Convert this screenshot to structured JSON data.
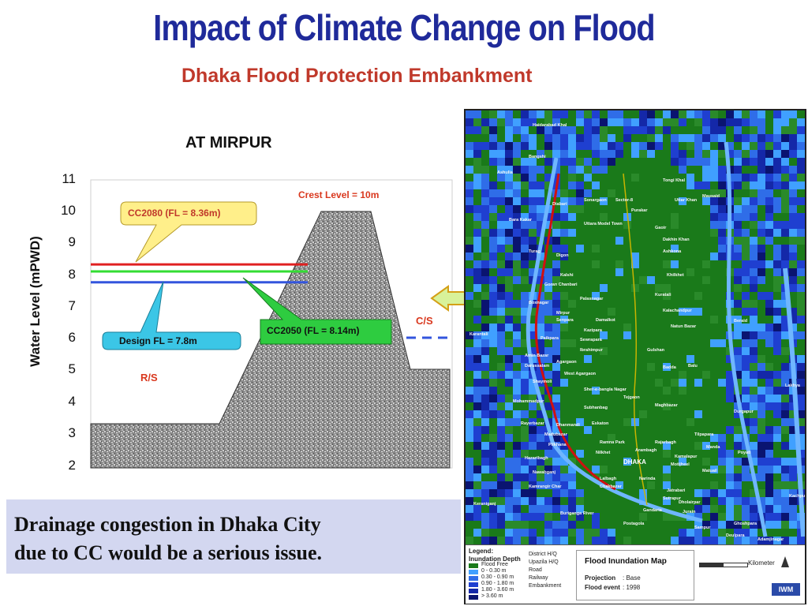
{
  "slide": {
    "title": "Impact of Climate Change on Flood",
    "subtitle": "Dhaka Flood Protection Embankment"
  },
  "cross_section": {
    "title": "AT MIRPUR",
    "ylabel": "Water Level (mPWD)",
    "y_ticks": [
      "11",
      "10",
      "9",
      "8",
      "7",
      "6",
      "5",
      "4",
      "3",
      "2"
    ],
    "ylim": [
      2,
      11
    ],
    "crest_label": "Crest Level = 10m",
    "crest_level": 10,
    "cc2080_label": "CC2080 (FL = 8.36m)",
    "cc2080_level": 8.36,
    "cc2050_label": "CC2050 (FL = 8.14m)",
    "cc2050_level": 8.14,
    "design_label": "Design FL = 7.8m",
    "design_level": 7.8,
    "rs_label": "R/S",
    "cs_label": "C/S",
    "colors": {
      "cc2080": "#e02020",
      "cc2050": "#33dd33",
      "design": "#3355dd",
      "callout_yellow": "#ffef8a",
      "callout_green": "#2ecc40",
      "callout_blue": "#3bc6e6",
      "label_red": "#d9381e"
    }
  },
  "conclusion": {
    "line1": "Drainage congestion in Dhaka City",
    "line2": "due to CC would be a serious issue."
  },
  "map": {
    "places": [
      {
        "name": "Haidarabad Khal"
      },
      {
        "name": "Bangshi"
      },
      {
        "name": "Tongi Khal"
      },
      {
        "name": "Ashulia"
      },
      {
        "name": "Diabari"
      },
      {
        "name": "Sonargaon"
      },
      {
        "name": "Sector-8"
      },
      {
        "name": "Purakar"
      },
      {
        "name": "Uttar Khan"
      },
      {
        "name": "Mausaid"
      },
      {
        "name": "Bara Kakar"
      },
      {
        "name": "Uttara Model Town"
      },
      {
        "name": "Turag"
      },
      {
        "name": "Gaoir"
      },
      {
        "name": "Dakhin Khan"
      },
      {
        "name": "Ashkona"
      },
      {
        "name": "Digon"
      },
      {
        "name": "Kalshi"
      },
      {
        "name": "Goran Chanbari"
      },
      {
        "name": "Khilkhet"
      },
      {
        "name": "Boxnagar"
      },
      {
        "name": "Palasnagar"
      },
      {
        "name": "Kuratali"
      },
      {
        "name": "Kalachandpur"
      },
      {
        "name": "Mirpur"
      },
      {
        "name": "Senpara"
      },
      {
        "name": "Damalkot"
      },
      {
        "name": "Natun Bazar"
      },
      {
        "name": "Beraid"
      },
      {
        "name": "Karantali"
      },
      {
        "name": "Kazipara"
      },
      {
        "name": "Paikpara"
      },
      {
        "name": "Sewrapara"
      },
      {
        "name": "Ibrahimpur"
      },
      {
        "name": "Gulshan"
      },
      {
        "name": "Amin Bazar"
      },
      {
        "name": "Darussalam"
      },
      {
        "name": "Agargaon"
      },
      {
        "name": "West Agargaon"
      },
      {
        "name": "Shaymoli"
      },
      {
        "name": "Badda"
      },
      {
        "name": "Balu"
      },
      {
        "name": "Sher-e-bangla Nagar"
      },
      {
        "name": "Tejgaon"
      },
      {
        "name": "Mohammadpur"
      },
      {
        "name": "Subhanbag"
      },
      {
        "name": "Maghbazar"
      },
      {
        "name": "Durgapur"
      },
      {
        "name": "Rayerbazar"
      },
      {
        "name": "Dhanmandi"
      },
      {
        "name": "Eskaton"
      },
      {
        "name": "Madubazar"
      },
      {
        "name": "Ramna Park"
      },
      {
        "name": "Rajarbagh"
      },
      {
        "name": "Pilkhana"
      },
      {
        "name": "Nilkhet"
      },
      {
        "name": "Arambagh"
      },
      {
        "name": "Kamalapur"
      },
      {
        "name": "Hazaribagh"
      },
      {
        "name": "DHAKA"
      },
      {
        "name": "Motijheel"
      },
      {
        "name": "Nawabganj"
      },
      {
        "name": "Lalbagh"
      },
      {
        "name": "Narinda"
      },
      {
        "name": "Kamrangir Char"
      },
      {
        "name": "Chakbazar"
      },
      {
        "name": "Jatrabari"
      },
      {
        "name": "Sutrapur"
      },
      {
        "name": "Keraniganj"
      },
      {
        "name": "Buriganga River"
      },
      {
        "name": "Gandaria"
      },
      {
        "name": "Dholairpar"
      },
      {
        "name": "Jurain"
      },
      {
        "name": "Postagola"
      },
      {
        "name": "Sampur"
      },
      {
        "name": "Ghoshpara"
      },
      {
        "name": "Deulpara"
      },
      {
        "name": "Adamjinagar"
      },
      {
        "name": "Lakhya"
      },
      {
        "name": "Poyati"
      },
      {
        "name": "Tilpapara"
      },
      {
        "name": "Manda"
      },
      {
        "name": "Matuail"
      },
      {
        "name": "Kachpur"
      }
    ],
    "legend": {
      "heading": "Legend:",
      "depth_title": "Inundation Depth",
      "depth_classes": [
        "Flood Free",
        "0 - 0.30 m",
        "0.30 - 0.90 m",
        "0.90 - 1.80 m",
        "1.80 - 3.60 m",
        "> 3.60 m"
      ],
      "depth_colors": [
        "#1a7a1a",
        "#40a0ff",
        "#2f6de8",
        "#1f3fd0",
        "#1428a8",
        "#0a1470"
      ],
      "symbols": [
        "District H/Q",
        "Upazila H/Q",
        "Road",
        "Railway",
        "Embankment"
      ],
      "map_title": "Flood Inundation Map",
      "projection_label": "Projection",
      "projection_value": ": Base",
      "event_label": "Flood event",
      "event_value": ": 1998",
      "scale_label": "Kilometer",
      "org": "IWM"
    }
  }
}
